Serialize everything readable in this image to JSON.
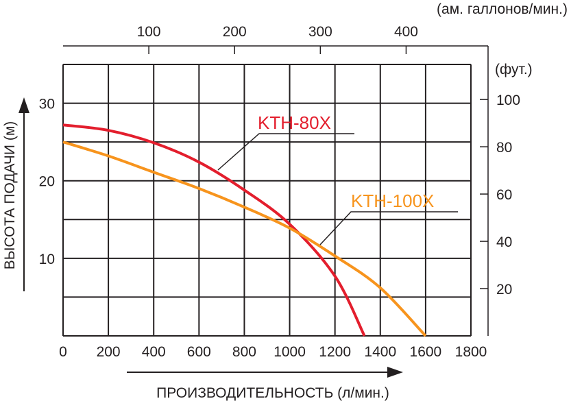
{
  "chart_data": {
    "type": "line",
    "xlabel": "ПРОИЗВОДИТЕЛЬНОСТЬ (л/мин.)",
    "ylabel": "ВЫСОТА ПОДАЧИ (м)",
    "xlim": [
      0,
      1800
    ],
    "ylim": [
      0,
      35
    ],
    "xticks": [
      "0",
      "200",
      "400",
      "600",
      "800",
      "1000",
      "1200",
      "1400",
      "1600",
      "1800"
    ],
    "yticks": [
      "10",
      "20",
      "30"
    ],
    "x2label": "(ам. галлонов/мин.)",
    "x2ticks": [
      "100",
      "200",
      "300",
      "400"
    ],
    "y2label": "(фут.)",
    "y2ticks": [
      "20",
      "40",
      "60",
      "80",
      "100"
    ],
    "grid": true,
    "series": [
      {
        "name": "KTH-80X",
        "color": "#e31e2d",
        "x": [
          0,
          200,
          400,
          600,
          800,
          1000,
          1200,
          1330
        ],
        "y": [
          27.2,
          26.5,
          24.9,
          22.4,
          18.8,
          14.4,
          7.7,
          0
        ]
      },
      {
        "name": "KTH-100X",
        "color": "#f7941d",
        "x": [
          0,
          200,
          400,
          600,
          800,
          1000,
          1200,
          1400,
          1600
        ],
        "y": [
          25,
          23.2,
          21.1,
          19.0,
          16.6,
          13.9,
          10.3,
          6.2,
          0
        ]
      }
    ]
  }
}
